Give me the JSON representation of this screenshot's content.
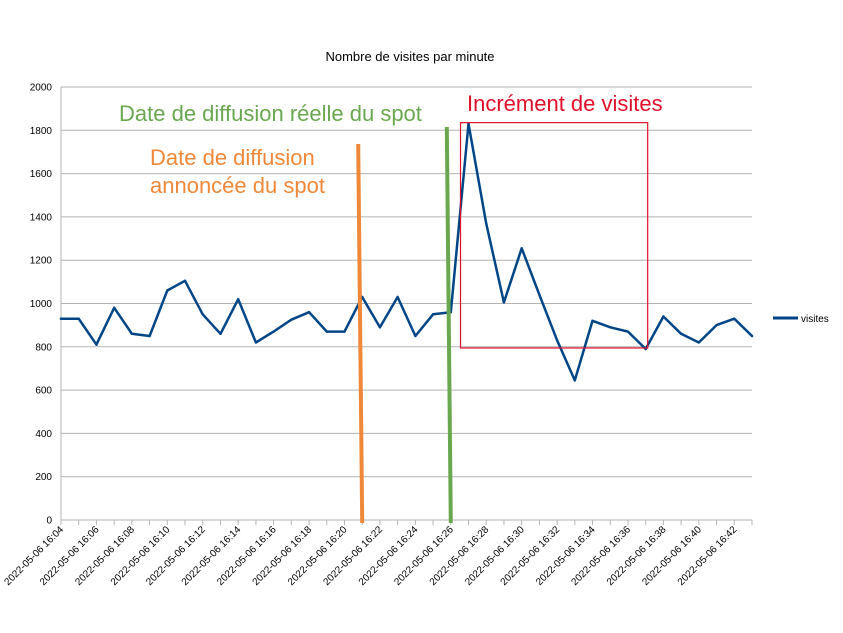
{
  "chart_data": {
    "type": "line",
    "title": "Nombre de visites par minute",
    "xlabel": "",
    "ylabel": "",
    "ylim": [
      0,
      2000
    ],
    "yticks": [
      0,
      200,
      400,
      600,
      800,
      1000,
      1200,
      1400,
      1600,
      1800,
      2000
    ],
    "xtick_labels": [
      "2022-05-06 16:04",
      "2022-05-06 16:06",
      "2022-05-06 16:08",
      "2022-05-06 16:10",
      "2022-05-06 16:12",
      "2022-05-06 16:14",
      "2022-05-06 16:16",
      "2022-05-06 16:18",
      "2022-05-06 16:20",
      "2022-05-06 16:22",
      "2022-05-06 16:24",
      "2022-05-06 16:26",
      "2022-05-06 16:28",
      "2022-05-06 16:30",
      "2022-05-06 16:32",
      "2022-05-06 16:34",
      "2022-05-06 16:36",
      "2022-05-06 16:38",
      "2022-05-06 16:40",
      "2022-05-06 16:42"
    ],
    "x": [
      "16:04",
      "16:05",
      "16:06",
      "16:07",
      "16:08",
      "16:09",
      "16:10",
      "16:11",
      "16:12",
      "16:13",
      "16:14",
      "16:15",
      "16:16",
      "16:17",
      "16:18",
      "16:19",
      "16:20",
      "16:21",
      "16:22",
      "16:23",
      "16:24",
      "16:25",
      "16:26",
      "16:27",
      "16:28",
      "16:29",
      "16:30",
      "16:31",
      "16:32",
      "16:33",
      "16:34",
      "16:35",
      "16:36",
      "16:37",
      "16:38",
      "16:39",
      "16:40",
      "16:41",
      "16:42",
      "16:43"
    ],
    "series": [
      {
        "name": "visites",
        "color": "#004586",
        "values": [
          930,
          930,
          810,
          980,
          860,
          850,
          1060,
          1105,
          950,
          860,
          1020,
          820,
          870,
          925,
          960,
          870,
          870,
          1030,
          890,
          1030,
          850,
          950,
          960,
          1830,
          1370,
          1005,
          1255,
          1040,
          830,
          645,
          920,
          890,
          870,
          790,
          940,
          860,
          820,
          900,
          930,
          850
        ]
      }
    ],
    "grid": true,
    "legend": "right",
    "annotations": [
      {
        "text_lines": [
          "Date de diffusion",
          "annoncée du spot"
        ],
        "color": "#f0883a",
        "marker": "vertical-line",
        "at": "16:21"
      },
      {
        "text_lines": [
          "Date de diffusion réelle du spot"
        ],
        "color": "#6aa84f",
        "marker": "vertical-line",
        "at": "16:26"
      },
      {
        "text_lines": [
          "Incrément de visites"
        ],
        "color": "#e0102a",
        "marker": "box",
        "from": "16:27",
        "to": "16:37",
        "ymin": 790,
        "ymax": 1840
      }
    ]
  }
}
